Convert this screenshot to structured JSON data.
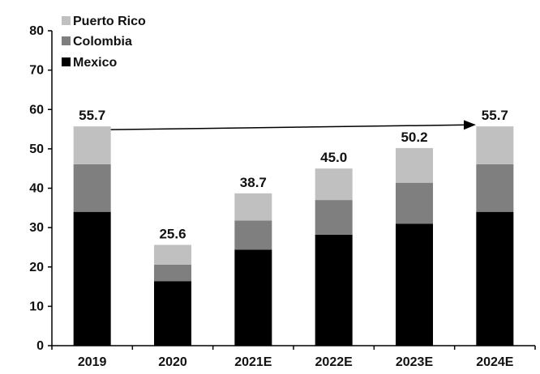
{
  "chart_data": {
    "type": "bar",
    "stacked": true,
    "categories": [
      "2019",
      "2020",
      "2021E",
      "2022E",
      "2023E",
      "2024E"
    ],
    "series": [
      {
        "name": "Mexico",
        "color": "#000000",
        "values": [
          34.0,
          16.4,
          24.4,
          28.2,
          31.0,
          34.0
        ]
      },
      {
        "name": "Colombia",
        "color": "#7f7f7f",
        "values": [
          12.1,
          4.2,
          7.4,
          8.8,
          10.4,
          12.1
        ]
      },
      {
        "name": "Puerto Rico",
        "color": "#c0c0c0",
        "values": [
          9.6,
          5.0,
          6.9,
          8.0,
          8.8,
          9.6
        ]
      }
    ],
    "totals": [
      "55.7",
      "25.6",
      "38.7",
      "45.0",
      "50.2",
      "55.7"
    ],
    "yticks": [
      "0",
      "10",
      "20",
      "30",
      "40",
      "50",
      "60",
      "70",
      "80"
    ],
    "ylim": [
      0,
      80
    ],
    "legend_position": "top-left",
    "legend_order": [
      "Puerto Rico",
      "Colombia",
      "Mexico"
    ],
    "annotation": {
      "type": "arrow",
      "from_category": "2019",
      "to_category": "2024E",
      "value": 55.7
    }
  }
}
